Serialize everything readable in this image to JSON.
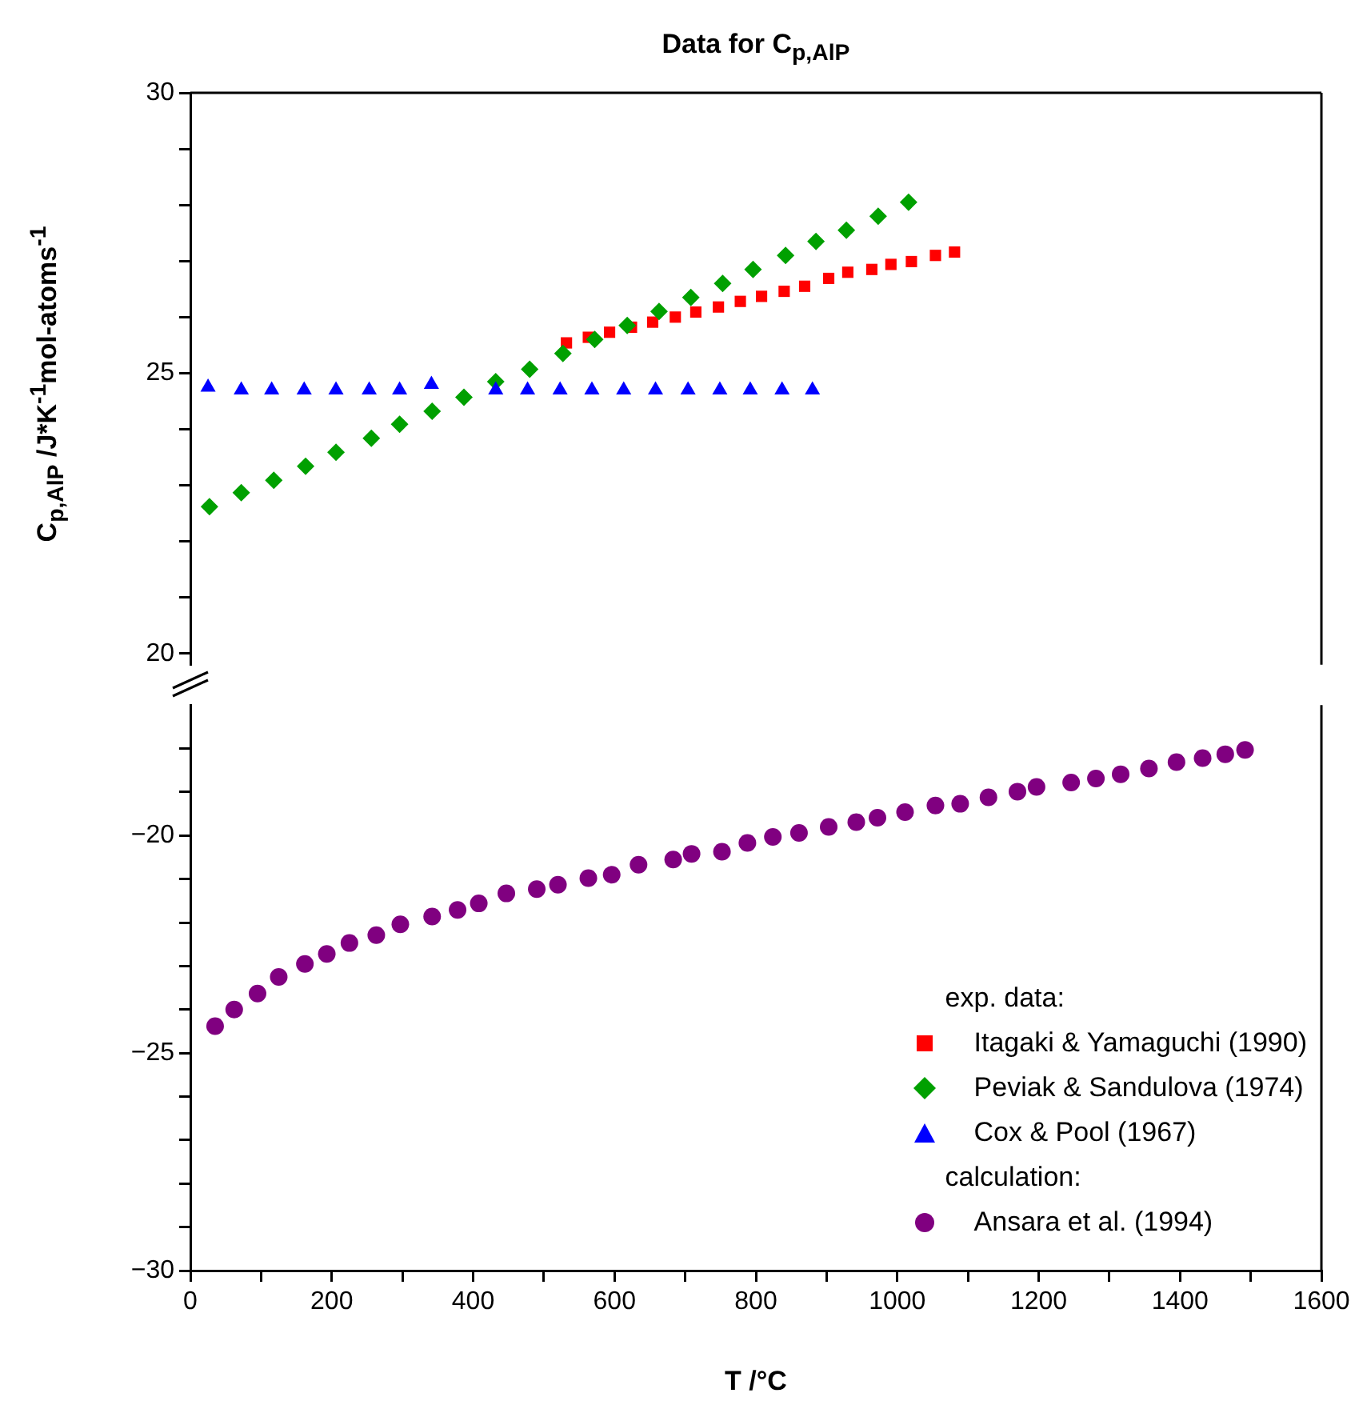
{
  "chart_data": [
    {
      "type": "scatter",
      "title": "Data for C$_{p,AlP}$",
      "ylabel": "C$_{p,AlP}$ /J*K$^{-1}$mol-atoms$^{-1}$",
      "legend_title": "exp. data:",
      "legend": "bottom right",
      "grid": false,
      "tick_labels": "y",
      "xlim": [
        0,
        1600
      ],
      "ylim": [
        19.8,
        30
      ],
      "yticks": [
        20,
        {
          "value": 21,
          "label": null
        },
        {
          "value": 22,
          "label": null
        },
        {
          "value": 23,
          "label": null
        },
        {
          "value": 24,
          "label": null
        },
        25,
        {
          "value": 26,
          "label": null
        },
        {
          "value": 27,
          "label": null
        },
        {
          "value": 28,
          "label": null
        },
        {
          "value": 29,
          "label": null
        },
        30
      ],
      "series": [
        {
          "name": "Itagaki & Yamaguchi (1990)",
          "color": "#ff0000",
          "marker": "square",
          "x": [
            532,
            563,
            593,
            624,
            654,
            686,
            715,
            747,
            778,
            808,
            840,
            869,
            903,
            930,
            964,
            991,
            1020,
            1054,
            1081
          ],
          "values": [
            25.54,
            25.64,
            25.73,
            25.82,
            25.91,
            26.0,
            26.09,
            26.18,
            26.28,
            26.37,
            26.46,
            26.55,
            26.69,
            26.8,
            26.85,
            26.94,
            26.99,
            27.1,
            27.16
          ]
        },
        {
          "name": "Peviak & Sandulova (1974)",
          "color": "#00a000",
          "marker": "diamond",
          "x": [
            27,
            72,
            118,
            163,
            206,
            256,
            296,
            342,
            387,
            432,
            480,
            527,
            572,
            618,
            663,
            708,
            753,
            796,
            842,
            885,
            928,
            973,
            1016
          ],
          "values": [
            22.62,
            22.87,
            23.09,
            23.34,
            23.59,
            23.84,
            24.09,
            24.32,
            24.57,
            24.85,
            25.07,
            25.35,
            25.6,
            25.85,
            26.1,
            26.35,
            26.6,
            26.85,
            27.1,
            27.35,
            27.55,
            27.8,
            28.05
          ]
        },
        {
          "name": "Cox & Pool (1967)",
          "color": "#0000ff",
          "marker": "triangle",
          "x": [
            25,
            72,
            115,
            161,
            206,
            253,
            296,
            341,
            432,
            477,
            523,
            568,
            613,
            658,
            704,
            749,
            792,
            837,
            880
          ],
          "values": [
            24.75,
            24.7,
            24.7,
            24.7,
            24.7,
            24.7,
            24.7,
            24.8,
            24.7,
            24.7,
            24.7,
            24.7,
            24.7,
            24.7,
            24.7,
            24.7,
            24.7,
            24.7,
            24.7
          ]
        }
      ]
    },
    {
      "type": "scatter",
      "xlabel": "T /°C",
      "legend_title": "calculation:",
      "legend": "bottom right",
      "grid": false,
      "xlim": [
        0,
        1600
      ],
      "ylim": [
        -30,
        -17
      ],
      "xticks": [
        0,
        {
          "value": 100,
          "label": null
        },
        200,
        {
          "value": 300,
          "label": null
        },
        400,
        {
          "value": 500,
          "label": null
        },
        600,
        {
          "value": 700,
          "label": null
        },
        800,
        {
          "value": 900,
          "label": null
        },
        1000,
        {
          "value": 1100,
          "label": null
        },
        1200,
        {
          "value": 1300,
          "label": null
        },
        1400,
        {
          "value": 1500,
          "label": null
        },
        1600
      ],
      "yticks": [
        {
          "value": -30,
          "label": "−30"
        },
        {
          "value": -29,
          "label": null
        },
        {
          "value": -28,
          "label": null
        },
        {
          "value": -27,
          "label": null
        },
        {
          "value": -26,
          "label": null
        },
        {
          "value": -25,
          "label": "−25"
        },
        {
          "value": -24,
          "label": null
        },
        {
          "value": -23,
          "label": null
        },
        {
          "value": -22,
          "label": null
        },
        {
          "value": -21,
          "label": null
        },
        {
          "value": -20,
          "label": "−20"
        },
        {
          "value": -19,
          "label": null
        },
        {
          "value": -18,
          "label": null
        }
      ],
      "series": [
        {
          "name": "Ansara et al. (1994)",
          "color": "#800080",
          "marker": "circle",
          "x": [
            35,
            62,
            95,
            125,
            162,
            193,
            225,
            263,
            297,
            342,
            378,
            408,
            447,
            490,
            520,
            563,
            596,
            634,
            683,
            709,
            752,
            788,
            824,
            861,
            903,
            942,
            972,
            1011,
            1054,
            1089,
            1129,
            1170,
            1197,
            1246,
            1281,
            1316,
            1356,
            1395,
            1432,
            1464,
            1492
          ],
          "values": [
            -24.38,
            -24.0,
            -23.63,
            -23.25,
            -22.95,
            -22.72,
            -22.47,
            -22.29,
            -22.04,
            -21.86,
            -21.71,
            -21.56,
            -21.33,
            -21.23,
            -21.13,
            -20.98,
            -20.9,
            -20.67,
            -20.55,
            -20.42,
            -20.37,
            -20.17,
            -20.03,
            -19.94,
            -19.8,
            -19.69,
            -19.59,
            -19.46,
            -19.31,
            -19.27,
            -19.12,
            -18.99,
            -18.88,
            -18.78,
            -18.69,
            -18.59,
            -18.46,
            -18.31,
            -18.22,
            -18.13,
            -18.03
          ]
        }
      ]
    }
  ]
}
